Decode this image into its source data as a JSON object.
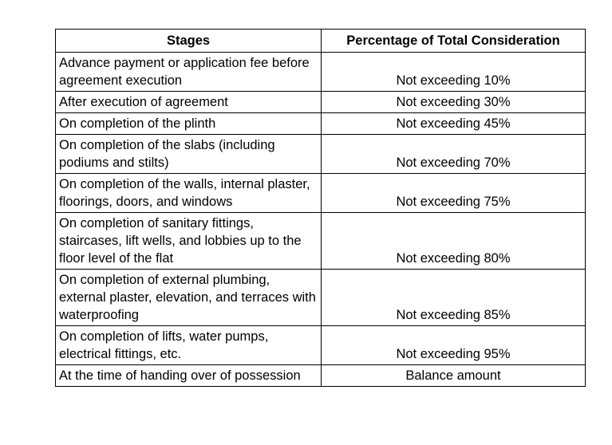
{
  "table": {
    "headers": {
      "stages": "Stages",
      "percentage": "Percentage of Total Consideration"
    },
    "rows": [
      {
        "stage": "Advance payment or application fee before agreement execution",
        "percentage": "Not exceeding 10%"
      },
      {
        "stage": "After execution of agreement",
        "percentage": "Not exceeding 30%"
      },
      {
        "stage": "On completion of the plinth",
        "percentage": "Not exceeding 45%"
      },
      {
        "stage": "On completion of the slabs (including podiums and stilts)",
        "percentage": "Not exceeding 70%"
      },
      {
        "stage": "On completion of the walls, internal plaster, floorings, doors, and windows",
        "percentage": "Not exceeding 75%"
      },
      {
        "stage": "On completion of sanitary fittings, staircases, lift wells, and lobbies up to the floor level of the flat",
        "percentage": "Not exceeding 80%"
      },
      {
        "stage": "On completion of external plumbing, external plaster, elevation, and terraces with waterproofing",
        "percentage": "Not exceeding 85%"
      },
      {
        "stage": "On completion of lifts, water pumps, electrical fittings, etc.",
        "percentage": "Not exceeding 95%"
      },
      {
        "stage": "At the time of handing over of possession",
        "percentage": "Balance amount"
      }
    ]
  }
}
